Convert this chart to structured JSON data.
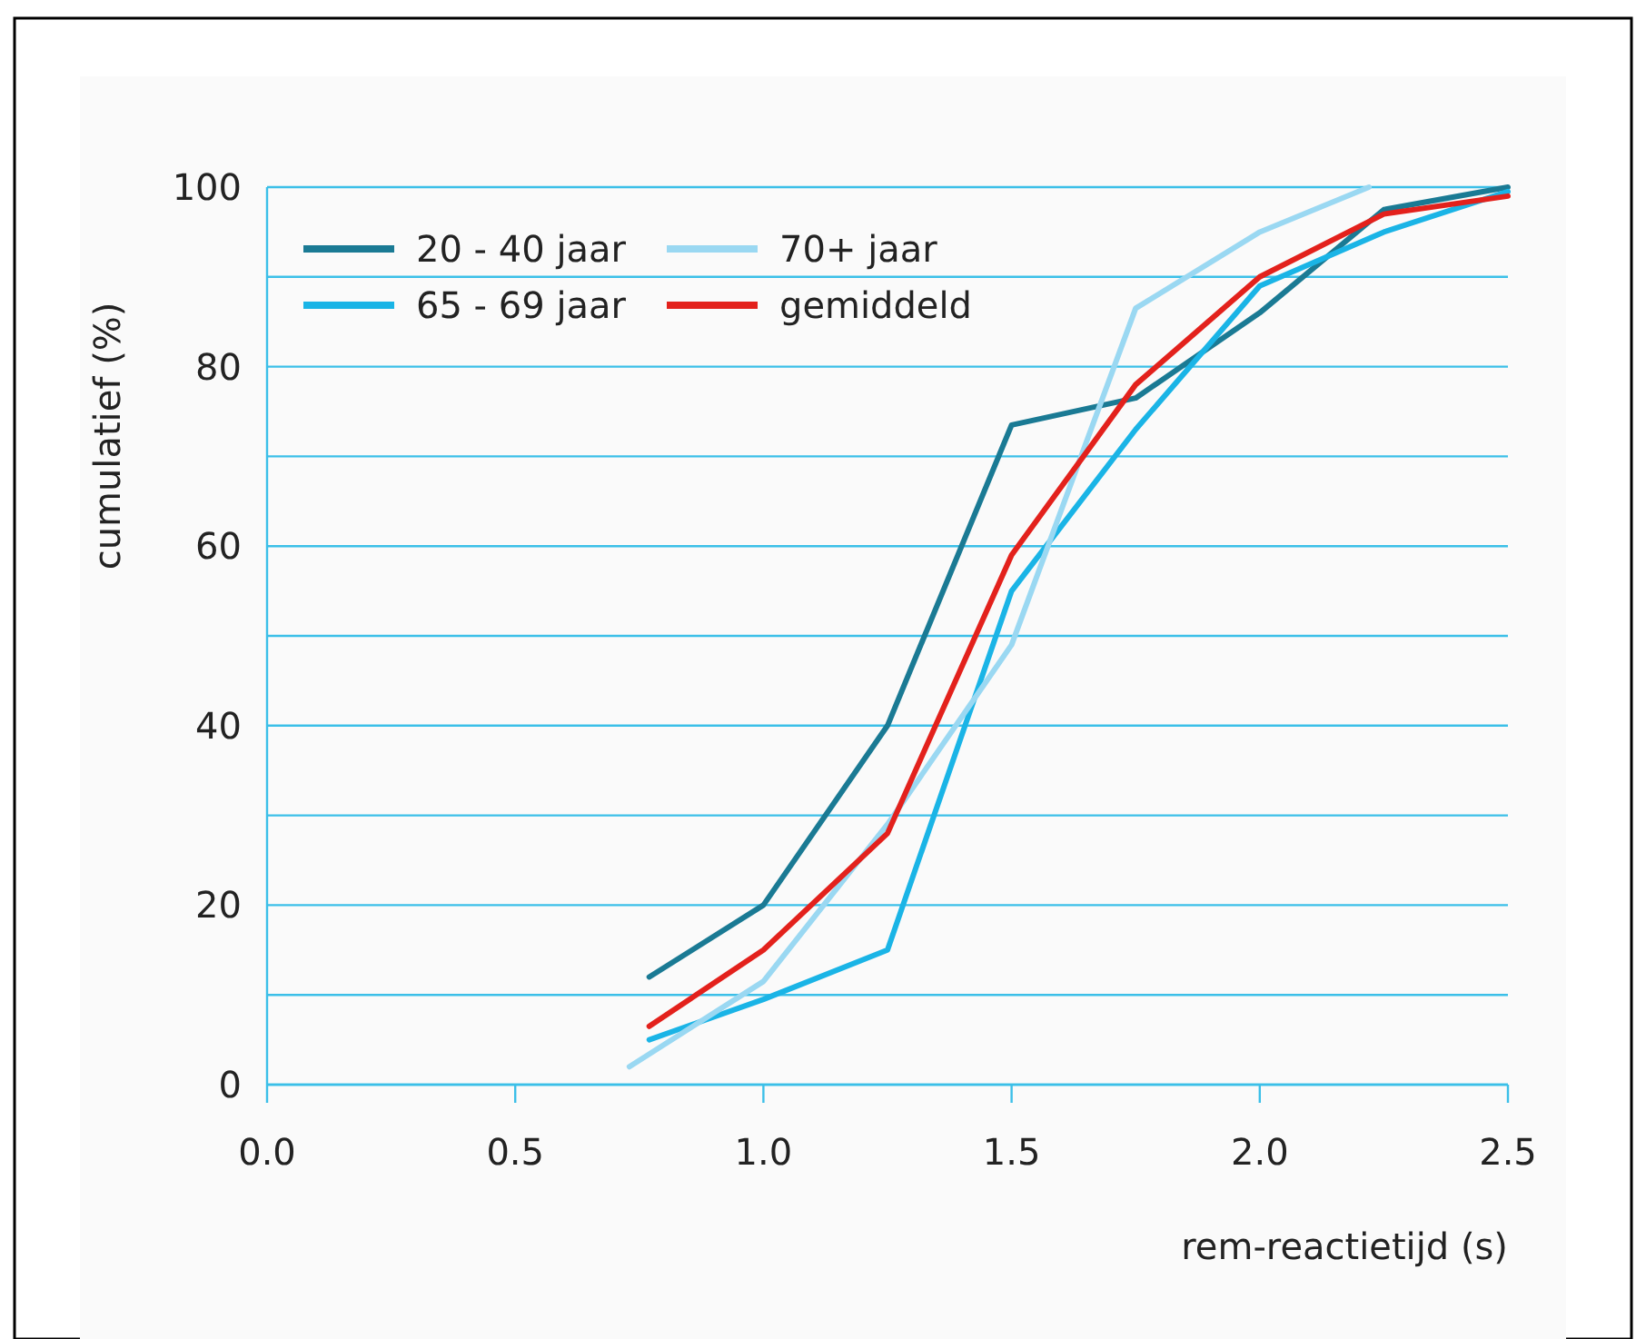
{
  "chart_data": {
    "type": "line",
    "xlabel": "rem-reactietijd (s)",
    "ylabel": "cumulatief (%)",
    "xlim": [
      0,
      2.5
    ],
    "xticks": [
      {
        "value": 0,
        "label": "0.0"
      },
      {
        "value": 0.5,
        "label": "0.5"
      },
      {
        "value": 1,
        "label": "1.0"
      },
      {
        "value": 1.5,
        "label": "1.5"
      },
      {
        "value": 2,
        "label": "2.0"
      },
      {
        "value": 2.5,
        "label": "2.5"
      }
    ],
    "ylim": [
      0,
      100
    ],
    "yticks": [
      0,
      {
        "value": 10,
        "label": null
      },
      20,
      {
        "value": 30,
        "label": null
      },
      40,
      {
        "value": 50,
        "label": null
      },
      60,
      {
        "value": 70,
        "label": null
      },
      80,
      {
        "value": 90,
        "label": null
      },
      100
    ],
    "grid": "y",
    "legend": "top left",
    "marker": "none",
    "line_style": "solid",
    "series": [
      {
        "name": "20 - 40 jaar",
        "color": "#1a7a94",
        "x": [
          0.77,
          1.0,
          1.25,
          1.5,
          1.75,
          2.0,
          2.25,
          2.5
        ],
        "values": [
          12,
          20,
          40,
          73.5,
          76.5,
          86,
          97.5,
          100
        ]
      },
      {
        "name": "65 - 69 jaar",
        "color": "#1ab4e6",
        "x": [
          0.77,
          1.0,
          1.25,
          1.5,
          1.75,
          2.0,
          2.25,
          2.5
        ],
        "values": [
          5,
          9.5,
          15,
          55,
          73,
          89,
          95,
          99.5
        ]
      },
      {
        "name": "70+ jaar",
        "color": "#9ad8f2",
        "x": [
          0.73,
          1.0,
          1.25,
          1.5,
          1.75,
          2.0,
          2.22
        ],
        "values": [
          2,
          11.5,
          29,
          49,
          86.5,
          95,
          100
        ]
      },
      {
        "name": "gemiddeld",
        "color": "#e3211c",
        "x": [
          0.77,
          1.0,
          1.25,
          1.5,
          1.75,
          2.0,
          2.25,
          2.5
        ],
        "values": [
          6.5,
          15,
          28,
          59,
          78,
          90,
          97,
          99
        ]
      }
    ]
  }
}
